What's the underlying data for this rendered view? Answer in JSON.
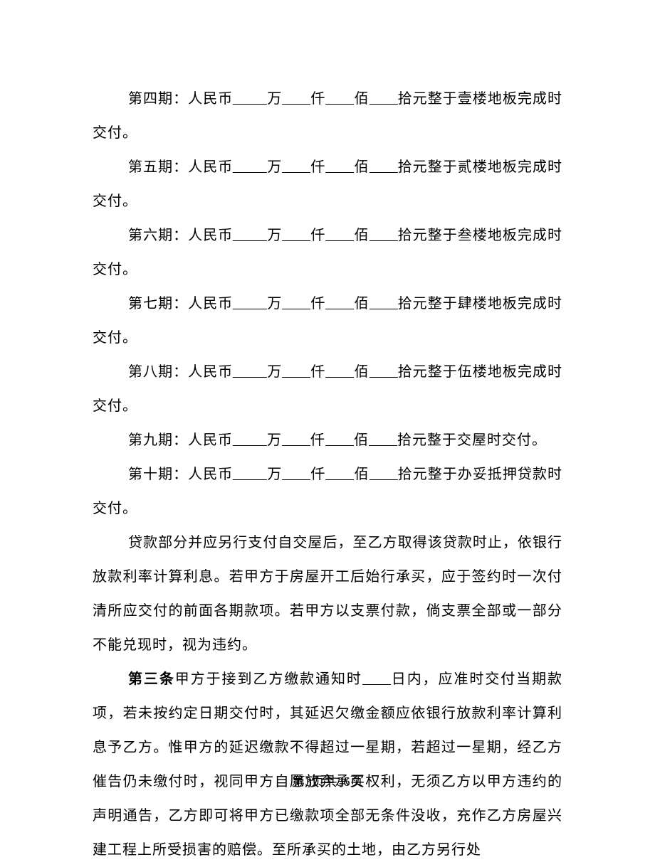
{
  "colors": {
    "background": "#ffffff",
    "text": "#000000"
  },
  "typography": {
    "font_family": "SimSun",
    "body_fontsize": 20,
    "line_height": 2.4,
    "letter_spacing": 1
  },
  "payments": [
    {
      "period": "第四期：人民币",
      "unit1": "万",
      "unit2": "仟",
      "unit3": "佰",
      "suffix": "拾元整于壹楼地板完成时交付。"
    },
    {
      "period": "第五期：人民币",
      "unit1": "万",
      "unit2": "仟",
      "unit3": "佰",
      "suffix": "拾元整于贰楼地板完成时交付。"
    },
    {
      "period": "第六期：人民币",
      "unit1": "万",
      "unit2": "仟",
      "unit3": "佰",
      "suffix": "拾元整于叁楼地板完成时交付。"
    },
    {
      "period": "第七期：人民币",
      "unit1": "万",
      "unit2": "仟",
      "unit3": "佰",
      "suffix": "拾元整于肆楼地板完成时交付。"
    },
    {
      "period": "第八期：人民币",
      "unit1": "万",
      "unit2": "仟",
      "unit3": "佰",
      "suffix": "拾元整于伍楼地板完成时交付。"
    },
    {
      "period": "第九期：人民币",
      "unit1": "万",
      "unit2": "仟",
      "unit3": "佰",
      "suffix": "拾元整于交屋时交付。"
    },
    {
      "period": "第十期：人民币",
      "unit1": "万",
      "unit2": "仟",
      "unit3": "佰",
      "suffix": "拾元整于办妥抵押贷款时交付。"
    }
  ],
  "loan_paragraph": "贷款部分并应另行支付自交屋后，至乙方取得该贷款时止，依银行放款利率计算利息。若甲方于房屋开工后始行承买，应于签约时一次付清所应交付的前面各期款项。若甲方以支票付款，倘支票全部或一部分不能兑现时，视为违约。",
  "article3": {
    "title": "第三条",
    "part1": "甲方于接到乙方缴款通知时",
    "part2": "日内，应准时交付当期款项，若未按约定日期交付时，其延迟欠缴金额应依银行放款利率计算利息予乙方。惟甲方的延迟缴款不得超过一星期，若超过一星期，经乙方催告仍未缴付时，视同甲方自愿放弃承买权利，无须乙方以甲方违约的声明通告，乙方即可将甲方已缴款项全部无条件没收，充作乙方房屋兴建工程上所受损害的赔偿。至所承买的土地，由乙方另行处"
  },
  "footer": "第3页共36页"
}
